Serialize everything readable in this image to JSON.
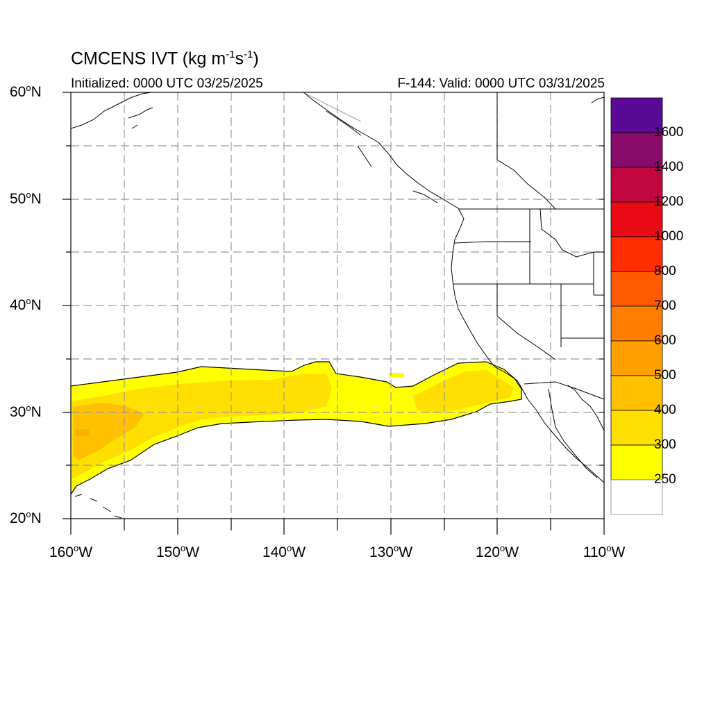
{
  "title": {
    "main": "CMCENS IVT (kg m",
    "exp1": "-1",
    "mid": "s",
    "exp2": "-1",
    "end": ")"
  },
  "initialized": "Initialized: 0000 UTC 03/25/2025",
  "valid": "F-144: Valid: 0000 UTC 03/31/2025",
  "degree_symbol": "o",
  "lat_labels": [
    "60",
    "50",
    "40",
    "30",
    "20"
  ],
  "lat_suffix": "N",
  "lon_labels": [
    "160",
    "150",
    "140",
    "130",
    "120",
    "110"
  ],
  "lon_suffix": "W",
  "map_extent": {
    "lon_min": -160,
    "lon_max": -110,
    "lat_min": 20,
    "lat_max": 60
  },
  "colorbar": {
    "labels": [
      "1600",
      "1400",
      "1200",
      "1000",
      "800",
      "700",
      "600",
      "500",
      "400",
      "300",
      "250"
    ],
    "colors_top_to_bottom": [
      "#5a0a96",
      "#880a6a",
      "#c0053f",
      "#e80a14",
      "#ff2d00",
      "#ff5a00",
      "#ff7d00",
      "#ff9f00",
      "#ffc000",
      "#ffdf00",
      "#ffff00",
      "#ffffff"
    ]
  },
  "ivt_colors": {
    "250": "#ffff00",
    "300": "#ffdf00",
    "400": "#ffc000"
  }
}
